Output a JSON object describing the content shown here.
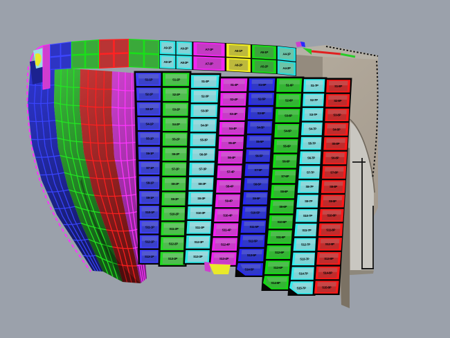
{
  "scene": {
    "background": "#9ba1ab",
    "description": "3D CAD viewport - ship hull shell plate expansion view"
  },
  "surfaces": [
    {
      "name": "bow-surface-blue",
      "fill_top": "#2e36d2",
      "fill_bottom": "#141a66",
      "line": "#3a44ff"
    },
    {
      "name": "bow-surface-green",
      "fill_top": "#3cbb3c",
      "fill_bottom": "#135a16",
      "line": "#23e823"
    },
    {
      "name": "bow-surface-red",
      "fill_top": "#c43636",
      "fill_bottom": "#6a1212",
      "line": "#ff2020"
    },
    {
      "name": "bow-surface-magenta",
      "fill_top": "#cc42cc",
      "fill_bottom": "#821e8c",
      "line": "#ff35ff"
    }
  ],
  "top_band": {
    "grid_panels": [
      {
        "name": "sheer-panel-blue",
        "fill": "#2d34c4",
        "line": "#3c46ff"
      },
      {
        "name": "sheer-panel-green-1",
        "fill": "#3aa93a",
        "line": "#19e019"
      },
      {
        "name": "sheer-panel-red",
        "fill": "#b93434",
        "line": "#ff2222"
      },
      {
        "name": "sheer-panel-green-2",
        "fill": "#3aa93a",
        "line": "#19e019"
      }
    ],
    "labeled_panels": [
      {
        "name": "sheer-plate-cyan",
        "border": "#2ee8e8",
        "fill": "#84d2d6",
        "cols": 2,
        "labels": [
          "A9-1P",
          "A9-2P",
          "A8-1P",
          "A8-2P"
        ]
      },
      {
        "name": "sheer-plate-magenta",
        "border": "#f225f2",
        "fill": "#c23cc2",
        "cols": 1,
        "labels": [
          "A7-1P",
          "A7-2P"
        ]
      },
      {
        "name": "sheer-plate-yellow",
        "border": "#f2ee20",
        "fill": "#bdb93c",
        "cols": 1,
        "labels": [
          "A6-1P",
          "A6-2P"
        ]
      },
      {
        "name": "sheer-plate-green",
        "border": "#19d919",
        "fill": "#3da43d",
        "cols": 1,
        "labels": [
          "A5-1P",
          "A5-2P"
        ]
      },
      {
        "name": "sheer-plate-teal",
        "border": "#25dcdc",
        "fill": "#6cc4a8",
        "cols": 1,
        "labels": [
          "A4-1P",
          "A4-2P"
        ]
      }
    ]
  },
  "plate_columns": [
    {
      "name": "strake-1-blue",
      "border": "#3f3fff",
      "fill": "#3a41c8",
      "labels": [
        "S1-1P",
        "S2-1P",
        "S3-1P",
        "S4-1P",
        "S5-1P",
        "S6-1P",
        "S7-1P",
        "S8-1P",
        "S9-1P",
        "S10-1P",
        "S11-1P",
        "S12-1P",
        "S13-1P"
      ]
    },
    {
      "name": "strake-2-green",
      "border": "#22dd22",
      "fill": "#4fbc4f",
      "labels": [
        "S1-2P",
        "S2-2P",
        "S3-2P",
        "S4-2P",
        "S5-2P",
        "S6-2P",
        "S7-2P",
        "S8-2P",
        "S9-2P",
        "S10-2P",
        "S11-2P",
        "S12-2P",
        "S13-2P"
      ]
    },
    {
      "name": "strake-3-cyan",
      "border": "#2ee8e8",
      "fill": "#8ad4d8",
      "labels": [
        "S1-3P",
        "S2-3P",
        "S3-3P",
        "S4-3P",
        "S5-3P",
        "S6-3P",
        "S7-3P",
        "S8-3P",
        "S9-3P",
        "S10-3P",
        "S11-3P",
        "S12-3P",
        "S13-3P"
      ]
    },
    {
      "name": "strake-4-magenta",
      "border": "#f020f0",
      "fill": "#c83cc8",
      "labels": [
        "S1-4P",
        "S2-4P",
        "S3-4P",
        "S4-4P",
        "S5-4P",
        "S6-4P",
        "S7-4P",
        "S8-4P",
        "S9-4P",
        "S10-4P",
        "S11-4P",
        "S12-4P",
        "S13-4P"
      ]
    },
    {
      "name": "strake-5-blue",
      "border": "#2828f5",
      "fill": "#3038c8",
      "labels": [
        "S1-5P",
        "S2-5P",
        "S3-5P",
        "S4-5P",
        "S5-5P",
        "S6-5P",
        "S7-5P",
        "S8-5P",
        "S9-5P",
        "S10-5P",
        "S11-5P",
        "S12-5P",
        "S13-5P",
        "S14-5P"
      ]
    },
    {
      "name": "strake-6-green",
      "border": "#12dd12",
      "fill": "#34b434",
      "labels": [
        "S1-6P",
        "S2-6P",
        "S3-6P",
        "S4-6P",
        "S5-6P",
        "S6-6P",
        "S7-6P",
        "S8-6P",
        "S9-6P",
        "S10-6P",
        "S11-6P",
        "S12-6P",
        "S13-6P",
        "S14-6P"
      ]
    },
    {
      "name": "strake-7-cyan",
      "border": "#30eeee",
      "fill": "#7fd4d6",
      "labels": [
        "S1-7P",
        "S2-7P",
        "S3-7P",
        "S4-7P",
        "S5-7P",
        "S6-7P",
        "S7-7P",
        "S8-7P",
        "S9-7P",
        "S10-7P",
        "S11-7P",
        "S12-7P",
        "S13-7P",
        "S14-7P",
        "S15-7P"
      ]
    },
    {
      "name": "strake-8-red",
      "border": "#ff1818",
      "fill": "#bf2c2c",
      "labels": [
        "S1-8P",
        "S2-8P",
        "S3-8P",
        "S4-8P",
        "S5-8P",
        "S6-8P",
        "S7-8P",
        "S8-8P",
        "S9-8P",
        "S10-8P",
        "S11-8P",
        "S12-8P",
        "S13-8P",
        "S14-8P",
        "S15-8P"
      ]
    }
  ],
  "structure": {
    "top_face": "#b6b1a6",
    "face": "#a89e90",
    "face_shadow": "#948b7e",
    "panel": "#c9c7c1",
    "panel_edge": "#6e675c",
    "shadow_strip": "#7b7264",
    "bottom_shadow": "#8e887c",
    "outline": "#131313"
  },
  "extras": {
    "yellow": "#e9e92a",
    "yellow_border": "#ffff30",
    "magenta": "#cf3ecf",
    "cyan_wedge": "#9adfe2",
    "cyan_wedge_border": "#2ee8e8",
    "navy": "#1c2290",
    "edge_magenta": "#ff30ff",
    "sliver_red": "#e02020",
    "sliver_green": "#27cc27",
    "sliver_blue": "#2a2aff"
  }
}
